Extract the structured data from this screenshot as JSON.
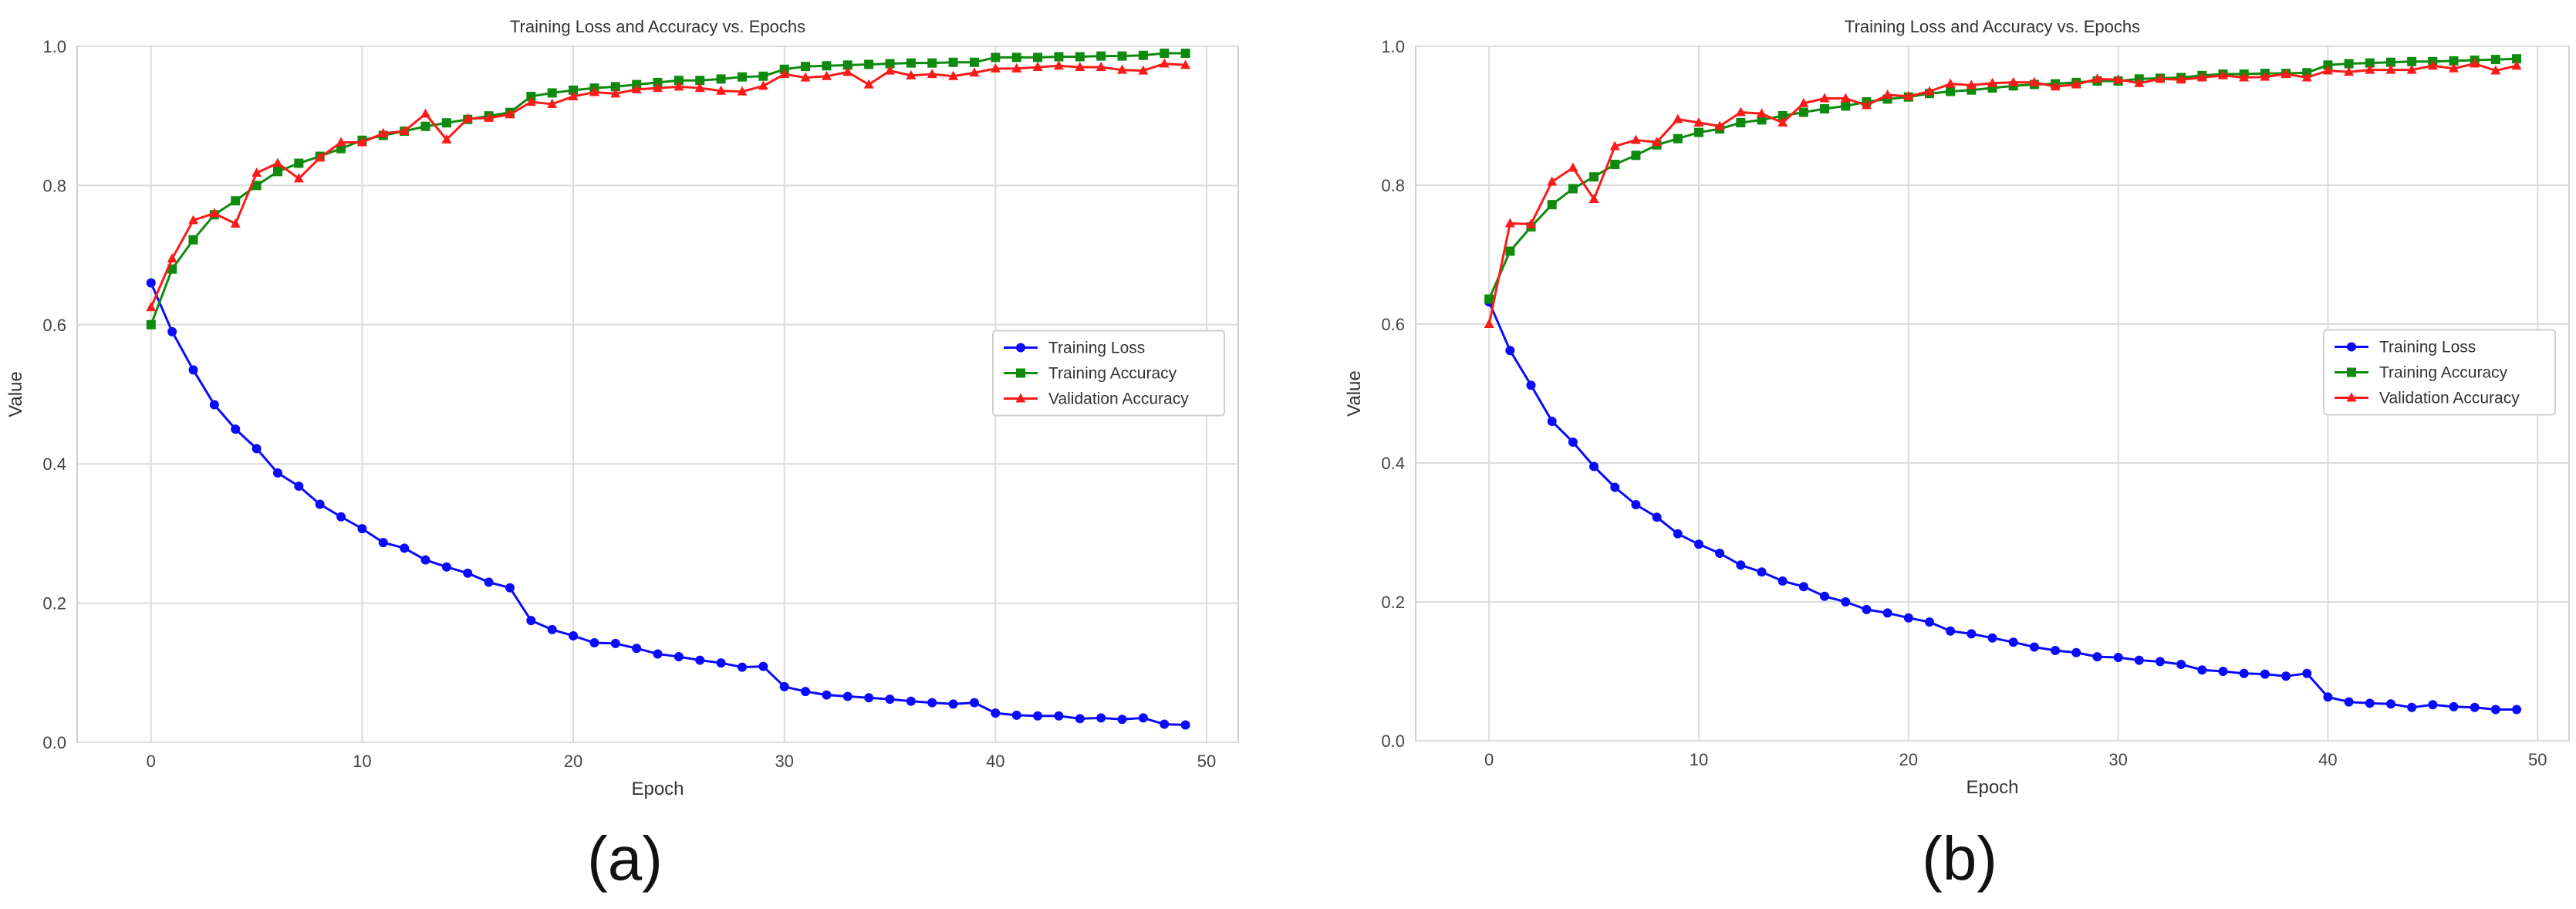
{
  "figure": {
    "panel_labels": [
      "(a)",
      "(b)"
    ]
  },
  "colors": {
    "training_loss": "#0a0aff",
    "training_accuracy": "#0e8a0e",
    "validation_accuracy": "#ff1a1a",
    "grid": "#dcdcdc",
    "axis_text": "#444444"
  },
  "chart_data": [
    {
      "type": "line",
      "title": "Training Loss and Accuracy vs. Epochs",
      "xlabel": "Epoch",
      "ylabel": "Value",
      "xlim": [
        -3.5,
        51.5
      ],
      "ylim": [
        0.0,
        1.0
      ],
      "xticks": [
        0,
        10,
        20,
        30,
        40,
        50
      ],
      "yticks": [
        0.0,
        0.2,
        0.4,
        0.6,
        0.8,
        1.0
      ],
      "grid": true,
      "legend_position": "center-right",
      "x": [
        0,
        1,
        2,
        3,
        4,
        5,
        6,
        7,
        8,
        9,
        10,
        11,
        12,
        13,
        14,
        15,
        16,
        17,
        18,
        19,
        20,
        21,
        22,
        23,
        24,
        25,
        26,
        27,
        28,
        29,
        30,
        31,
        32,
        33,
        34,
        35,
        36,
        37,
        38,
        39,
        40,
        41,
        42,
        43,
        44,
        45,
        46,
        47,
        48,
        49
      ],
      "series": [
        {
          "name": "Training Loss",
          "marker": "circle",
          "values": [
            0.66,
            0.59,
            0.535,
            0.485,
            0.45,
            0.422,
            0.387,
            0.368,
            0.342,
            0.324,
            0.307,
            0.287,
            0.279,
            0.262,
            0.252,
            0.243,
            0.23,
            0.222,
            0.175,
            0.162,
            0.153,
            0.143,
            0.142,
            0.135,
            0.127,
            0.123,
            0.118,
            0.114,
            0.108,
            0.109,
            0.08,
            0.073,
            0.068,
            0.066,
            0.064,
            0.062,
            0.059,
            0.057,
            0.055,
            0.057,
            0.042,
            0.039,
            0.038,
            0.038,
            0.034,
            0.035,
            0.033,
            0.035,
            0.026,
            0.025
          ]
        },
        {
          "name": "Training Accuracy",
          "marker": "square",
          "values": [
            0.6,
            0.68,
            0.722,
            0.758,
            0.778,
            0.8,
            0.82,
            0.832,
            0.842,
            0.853,
            0.865,
            0.872,
            0.878,
            0.885,
            0.89,
            0.895,
            0.9,
            0.905,
            0.928,
            0.933,
            0.937,
            0.94,
            0.942,
            0.945,
            0.948,
            0.951,
            0.951,
            0.953,
            0.956,
            0.957,
            0.967,
            0.971,
            0.972,
            0.973,
            0.974,
            0.975,
            0.976,
            0.976,
            0.977,
            0.977,
            0.984,
            0.984,
            0.984,
            0.985,
            0.985,
            0.986,
            0.986,
            0.987,
            0.99,
            0.99
          ]
        },
        {
          "name": "Validation Accuracy",
          "marker": "triangle",
          "values": [
            0.625,
            0.695,
            0.75,
            0.76,
            0.745,
            0.818,
            0.832,
            0.81,
            0.84,
            0.862,
            0.862,
            0.875,
            0.878,
            0.903,
            0.866,
            0.896,
            0.897,
            0.902,
            0.92,
            0.917,
            0.928,
            0.934,
            0.932,
            0.938,
            0.94,
            0.942,
            0.94,
            0.936,
            0.935,
            0.943,
            0.96,
            0.955,
            0.957,
            0.963,
            0.945,
            0.965,
            0.958,
            0.96,
            0.957,
            0.962,
            0.968,
            0.968,
            0.97,
            0.972,
            0.97,
            0.97,
            0.966,
            0.965,
            0.975,
            0.973
          ]
        }
      ]
    },
    {
      "type": "line",
      "title": "Training Loss and Accuracy vs. Epochs",
      "xlabel": "Epoch",
      "ylabel": "Value",
      "xlim": [
        -3.5,
        51.5
      ],
      "ylim": [
        0.0,
        1.0
      ],
      "xticks": [
        0,
        10,
        20,
        30,
        40,
        50
      ],
      "yticks": [
        0.0,
        0.2,
        0.4,
        0.6,
        0.8,
        1.0
      ],
      "grid": true,
      "legend_position": "center-right",
      "x": [
        0,
        1,
        2,
        3,
        4,
        5,
        6,
        7,
        8,
        9,
        10,
        11,
        12,
        13,
        14,
        15,
        16,
        17,
        18,
        19,
        20,
        21,
        22,
        23,
        24,
        25,
        26,
        27,
        28,
        29,
        30,
        31,
        32,
        33,
        34,
        35,
        36,
        37,
        38,
        39,
        40,
        41,
        42,
        43,
        44,
        45,
        46,
        47,
        48,
        49
      ],
      "series": [
        {
          "name": "Training Loss",
          "marker": "circle",
          "values": [
            0.632,
            0.562,
            0.512,
            0.46,
            0.43,
            0.395,
            0.365,
            0.34,
            0.322,
            0.298,
            0.283,
            0.27,
            0.253,
            0.243,
            0.23,
            0.222,
            0.208,
            0.2,
            0.189,
            0.184,
            0.177,
            0.171,
            0.158,
            0.154,
            0.148,
            0.142,
            0.135,
            0.13,
            0.127,
            0.121,
            0.12,
            0.116,
            0.114,
            0.11,
            0.102,
            0.1,
            0.097,
            0.096,
            0.093,
            0.097,
            0.063,
            0.056,
            0.054,
            0.053,
            0.048,
            0.052,
            0.049,
            0.048,
            0.045,
            0.045
          ]
        },
        {
          "name": "Training Accuracy",
          "marker": "square",
          "values": [
            0.636,
            0.705,
            0.74,
            0.772,
            0.795,
            0.812,
            0.83,
            0.843,
            0.858,
            0.867,
            0.876,
            0.881,
            0.89,
            0.894,
            0.9,
            0.905,
            0.91,
            0.914,
            0.92,
            0.924,
            0.927,
            0.932,
            0.935,
            0.937,
            0.94,
            0.943,
            0.945,
            0.946,
            0.948,
            0.95,
            0.95,
            0.953,
            0.954,
            0.955,
            0.958,
            0.96,
            0.96,
            0.961,
            0.961,
            0.962,
            0.973,
            0.975,
            0.976,
            0.977,
            0.978,
            0.978,
            0.979,
            0.98,
            0.981,
            0.982
          ]
        },
        {
          "name": "Validation Accuracy",
          "marker": "triangle",
          "values": [
            0.6,
            0.745,
            0.744,
            0.805,
            0.825,
            0.78,
            0.856,
            0.865,
            0.862,
            0.895,
            0.89,
            0.885,
            0.905,
            0.903,
            0.89,
            0.918,
            0.925,
            0.925,
            0.915,
            0.93,
            0.928,
            0.935,
            0.946,
            0.944,
            0.947,
            0.948,
            0.948,
            0.942,
            0.945,
            0.953,
            0.952,
            0.947,
            0.953,
            0.952,
            0.955,
            0.958,
            0.955,
            0.956,
            0.96,
            0.955,
            0.965,
            0.963,
            0.966,
            0.966,
            0.966,
            0.972,
            0.968,
            0.975,
            0.965,
            0.972
          ]
        }
      ]
    }
  ]
}
